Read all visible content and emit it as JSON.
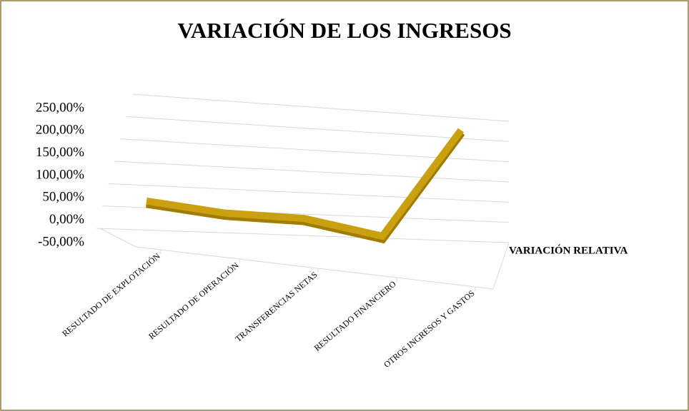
{
  "chart_data": {
    "type": "line",
    "title": "VARIACIÓN DE LOS INGRESOS",
    "categories": [
      "RESULTADO DE EXPLOTACIÓN",
      "RESULTADO DE OPERACIÓN",
      "TRANSFERENCIAS NETAS",
      "RESULTADO FINANCIERO",
      "OTROS INGRESOS Y GASTOS"
    ],
    "series": [
      {
        "name": "VARIACIÓN RELATIVA",
        "color": "#c9a010",
        "values": [
          15,
          -5,
          -10,
          -45,
          220
        ]
      }
    ],
    "ylim": [
      -50,
      250
    ],
    "yticks": [
      {
        "value": -50,
        "label": "-50,00%"
      },
      {
        "value": 0,
        "label": "0,00%"
      },
      {
        "value": 50,
        "label": "50,00%"
      },
      {
        "value": 100,
        "label": "100,00%"
      },
      {
        "value": 150,
        "label": "150,00%"
      },
      {
        "value": 200,
        "label": "200,00%"
      },
      {
        "value": 250,
        "label": "250,00%"
      }
    ],
    "grid": true,
    "legend": "right"
  }
}
